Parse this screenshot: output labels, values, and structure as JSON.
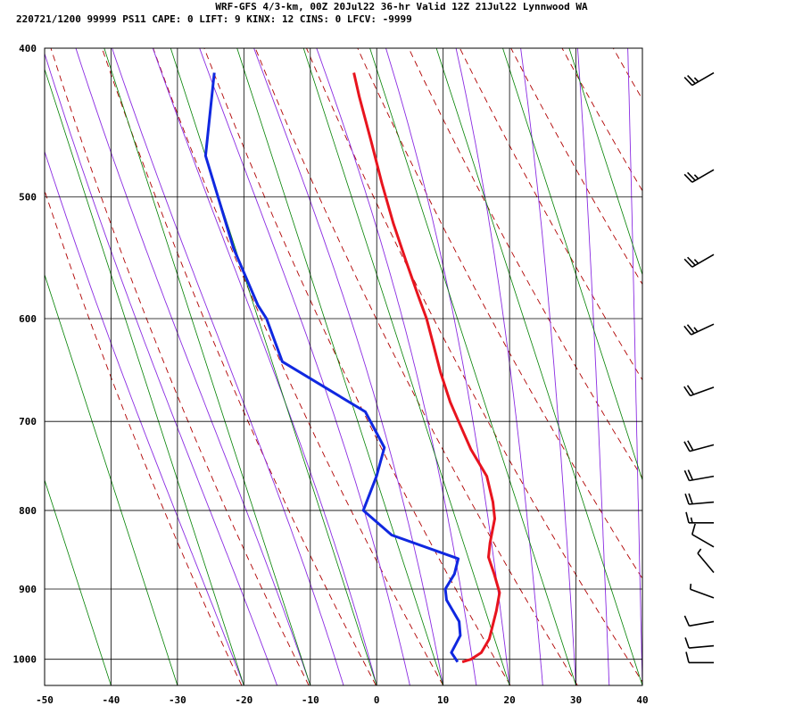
{
  "header": {
    "title": "WRF-GFS 4/3-km, 00Z 20Jul22 36-hr Valid 12Z 21Jul22 Lynnwood WA",
    "stats": "220721/1200 99999  PS11   CAPE:     0 LIFT:     9 KINX:    12 CINS:     0 LFCV: -9999"
  },
  "chart_data": {
    "type": "line",
    "title": "WRF-GFS 4/3-km, 00Z 20Jul22 36-hr Valid 12Z 21Jul22 Lynnwood WA",
    "chart_kind": "skew-T log-P sounding",
    "xlabel": "",
    "ylabel": "",
    "xlim": [
      -50,
      40
    ],
    "ylim": [
      1040,
      400
    ],
    "y_scale": "log",
    "x_ticks": [
      -50,
      -40,
      -30,
      -20,
      -10,
      0,
      10,
      20,
      30,
      40
    ],
    "y_ticks": [
      400,
      500,
      600,
      700,
      800,
      900,
      1000
    ],
    "grid": true,
    "colors": {
      "temperature": "#e8141e",
      "dewpoint": "#1028e0",
      "dry_adiabat": "#b00000",
      "moist_adiabat": "#8a2be2",
      "mixing_ratio": "#008000"
    },
    "series": [
      {
        "key": "temperature",
        "pressure": [
          1004,
          1000,
          990,
          970,
          950,
          930,
          905,
          880,
          858,
          840,
          810,
          790,
          760,
          730,
          700,
          680,
          650,
          625,
          600,
          580,
          550,
          520,
          490,
          460,
          430,
          415
        ],
        "values": [
          12,
          13.2,
          14.5,
          15.2,
          15.2,
          15.2,
          15,
          13.5,
          12,
          11.7,
          11.5,
          10.6,
          8.7,
          5.3,
          2.4,
          0.4,
          -2.2,
          -4.2,
          -6.3,
          -8.4,
          -11.6,
          -14.9,
          -18.1,
          -21.3,
          -24.8,
          -26.5
        ]
      },
      {
        "key": "dewpoint",
        "pressure": [
          1004,
          990,
          965,
          945,
          915,
          900,
          880,
          860,
          830,
          800,
          760,
          728,
          690,
          640,
          600,
          588,
          540,
          470,
          415
        ],
        "values": [
          11.3,
          10,
          10.7,
          10,
          7.3,
          6.7,
          7.5,
          7.5,
          -3.4,
          -8.6,
          -7.9,
          -7.8,
          -12,
          -26.4,
          -30.4,
          -32.2,
          -38,
          -45.7,
          -47.5
        ]
      }
    ],
    "wind_barbs": [
      {
        "pressure": 415,
        "dir": 240,
        "speed": 25
      },
      {
        "pressure": 480,
        "dir": 240,
        "speed": 25
      },
      {
        "pressure": 545,
        "dir": 240,
        "speed": 25
      },
      {
        "pressure": 605,
        "dir": 245,
        "speed": 25
      },
      {
        "pressure": 665,
        "dir": 250,
        "speed": 20
      },
      {
        "pressure": 725,
        "dir": 255,
        "speed": 20
      },
      {
        "pressure": 760,
        "dir": 260,
        "speed": 20
      },
      {
        "pressure": 790,
        "dir": 265,
        "speed": 20
      },
      {
        "pressure": 815,
        "dir": 270,
        "speed": 15
      },
      {
        "pressure": 845,
        "dir": 300,
        "speed": 10
      },
      {
        "pressure": 878,
        "dir": 320,
        "speed": 5
      },
      {
        "pressure": 912,
        "dir": 290,
        "speed": 5
      },
      {
        "pressure": 945,
        "dir": 260,
        "speed": 10
      },
      {
        "pressure": 980,
        "dir": 265,
        "speed": 10
      },
      {
        "pressure": 1005,
        "dir": 270,
        "speed": 10
      }
    ]
  }
}
